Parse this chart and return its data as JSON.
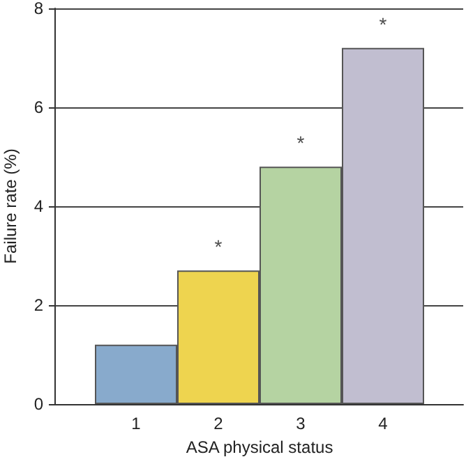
{
  "chart_data": {
    "type": "bar",
    "xlabel": "ASA physical status",
    "ylabel": "Failure rate (%)",
    "categories": [
      "1",
      "2",
      "3",
      "4"
    ],
    "values": [
      1.2,
      2.7,
      4.8,
      7.2
    ],
    "colors": [
      "#88aacc",
      "#eed44f",
      "#b5d3a2",
      "#c1bed0"
    ],
    "ylim": [
      0,
      8
    ],
    "yticks": [
      0,
      2,
      4,
      6,
      8
    ],
    "grid": "y",
    "annotations": [
      {
        "text": "*",
        "x": "2",
        "y": 2.7
      },
      {
        "text": "*",
        "x": "3",
        "y": 4.8
      },
      {
        "text": "*",
        "x": "4",
        "y": 7.2
      }
    ]
  }
}
